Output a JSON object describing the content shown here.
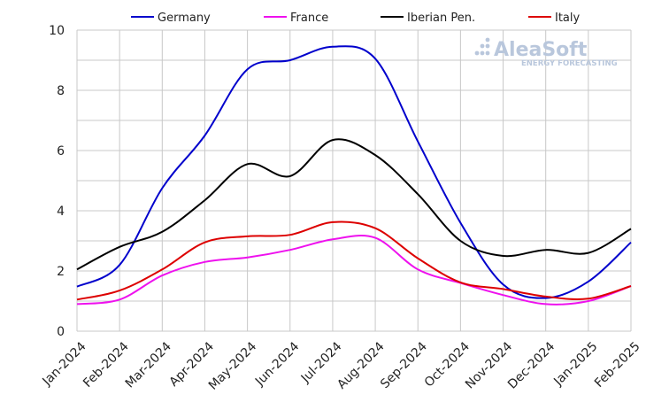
{
  "chart_data": {
    "type": "line",
    "title": "",
    "xlabel": "",
    "ylabel": "",
    "ylim": [
      0,
      10
    ],
    "yticks": [
      0,
      2,
      4,
      6,
      8,
      10
    ],
    "categories": [
      "Jan-2024",
      "Feb-2024",
      "Mar-2024",
      "Apr-2024",
      "May-2024",
      "Jun-2024",
      "Jul-2024",
      "Aug-2024",
      "Sep-2024",
      "Oct-2024",
      "Nov-2024",
      "Dec-2024",
      "Jan-2025",
      "Feb-2025"
    ],
    "legend_position": "top",
    "grid": true,
    "series": [
      {
        "name": "Germany",
        "color": "#0000cc",
        "values": [
          1.48,
          2.2,
          4.75,
          6.5,
          8.7,
          9.0,
          9.45,
          9.05,
          6.3,
          3.6,
          1.55,
          1.1,
          1.65,
          2.95
        ]
      },
      {
        "name": "France",
        "color": "#ee11ee",
        "values": [
          0.9,
          1.05,
          1.85,
          2.3,
          2.45,
          2.7,
          3.05,
          3.1,
          2.05,
          1.6,
          1.2,
          0.9,
          1.0,
          1.5
        ]
      },
      {
        "name": "Iberian Pen.",
        "color": "#000000",
        "values": [
          2.05,
          2.8,
          3.3,
          4.35,
          5.55,
          5.15,
          6.35,
          5.85,
          4.55,
          3.0,
          2.5,
          2.7,
          2.6,
          3.4
        ]
      },
      {
        "name": "Italy",
        "color": "#dd0000",
        "values": [
          1.05,
          1.35,
          2.05,
          2.95,
          3.15,
          3.2,
          3.62,
          3.42,
          2.42,
          1.62,
          1.4,
          1.15,
          1.08,
          1.5
        ]
      }
    ]
  },
  "watermark": {
    "brand": "AleaSoft",
    "tagline": "ENERGY FORECASTING"
  }
}
